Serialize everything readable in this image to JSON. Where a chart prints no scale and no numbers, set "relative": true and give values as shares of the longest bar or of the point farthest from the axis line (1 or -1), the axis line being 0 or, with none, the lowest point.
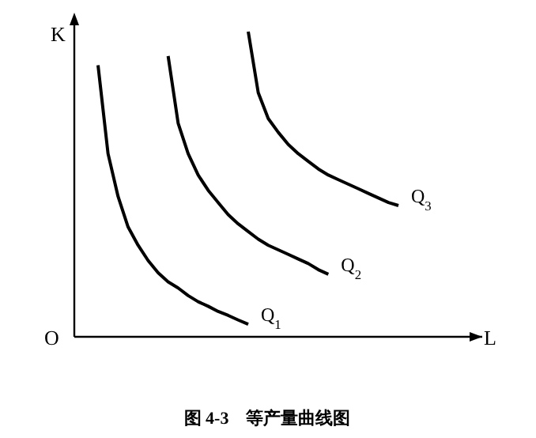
{
  "chart_data": {
    "type": "line",
    "title": "图 4-3　等产量曲线图",
    "xlabel": "L",
    "ylabel": "K",
    "annotations": [
      "O"
    ],
    "relative": true,
    "line_style": "solid",
    "categories": [
      null,
      null,
      null,
      null,
      null,
      null,
      null,
      null,
      null,
      null,
      null,
      null,
      null,
      null,
      null,
      null,
      null,
      null,
      null,
      null,
      null,
      null,
      null,
      null,
      null,
      null,
      null,
      null,
      null,
      null,
      null
    ],
    "series": [
      {
        "name": "Q$_{1}$",
        "color": "#000000",
        "values": [
          0.89,
          0.6,
          0.46,
          0.36,
          0.3,
          0.25,
          0.21,
          0.18,
          0.16,
          0.135,
          0.115,
          0.1,
          0.083,
          0.07,
          0.055,
          0.041,
          null,
          null,
          null,
          null,
          null,
          null,
          null,
          null,
          null,
          null,
          null,
          null,
          null,
          null,
          null
        ]
      },
      {
        "name": "Q$_{2}$",
        "color": "#000000",
        "values": [
          null,
          null,
          null,
          null,
          null,
          null,
          null,
          0.92,
          0.7,
          0.6,
          0.53,
          0.48,
          0.44,
          0.4,
          0.37,
          0.345,
          0.32,
          0.3,
          0.285,
          0.27,
          0.255,
          0.24,
          0.22,
          0.205,
          null,
          null,
          null,
          null,
          null,
          null,
          null
        ]
      },
      {
        "name": "Q$_{3}$",
        "color": "#000000",
        "values": [
          null,
          null,
          null,
          null,
          null,
          null,
          null,
          null,
          null,
          null,
          null,
          null,
          null,
          null,
          null,
          1,
          0.8,
          0.715,
          0.67,
          0.63,
          0.6,
          0.575,
          0.55,
          0.53,
          0.515,
          0.5,
          0.485,
          0.47,
          0.455,
          0.44,
          0.43
        ]
      }
    ]
  }
}
